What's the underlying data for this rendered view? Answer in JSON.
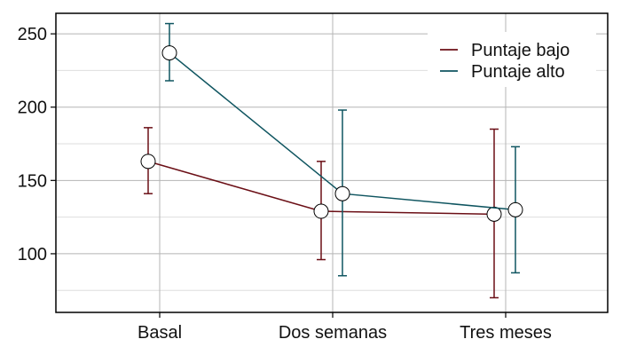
{
  "chart_data": {
    "type": "line",
    "title": "",
    "xlabel": "",
    "ylabel": "",
    "categories": [
      "Basal",
      "Dos semanas",
      "Tres meses"
    ],
    "y_ticks": [
      100,
      150,
      200,
      250
    ],
    "ylim": [
      60,
      264
    ],
    "grid": true,
    "legend_position": "top-right",
    "series": [
      {
        "name": "Puntaje bajo",
        "color": "#6b0f16",
        "values": [
          163,
          129,
          127
        ],
        "error_low": [
          141,
          96,
          70
        ],
        "error_high": [
          186,
          163,
          185
        ]
      },
      {
        "name": "Puntaje alto",
        "color": "#0f5560",
        "values": [
          237,
          141,
          130
        ],
        "error_low": [
          218,
          85,
          87
        ],
        "error_high": [
          257,
          198,
          173
        ]
      }
    ]
  }
}
